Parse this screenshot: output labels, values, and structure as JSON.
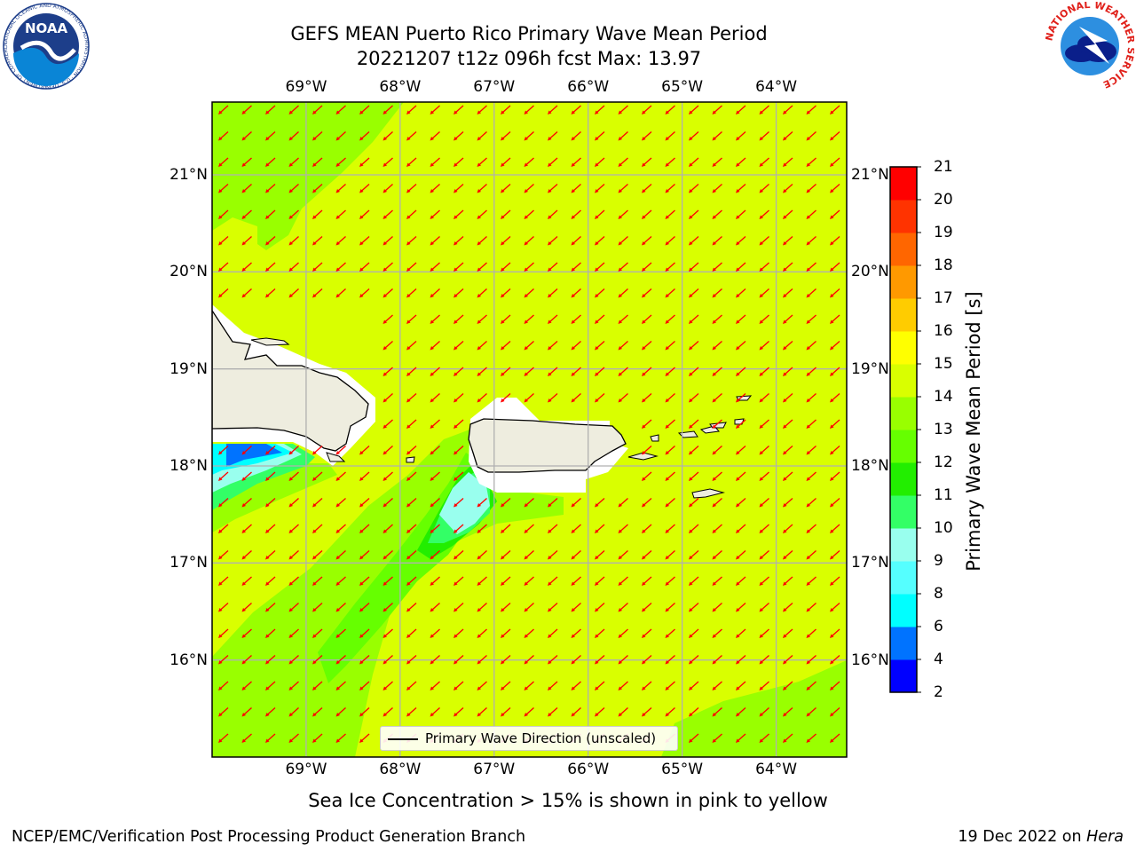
{
  "header": {
    "title_line1": "GEFS MEAN Puerto Rico Primary Wave Mean Period",
    "title_line2": "20221207 t12z 096h fcst   Max: 13.97"
  },
  "logos": {
    "noaa_text": "NOAA",
    "noaa_ring_text": "NATIONAL OCEANIC AND ATMOSPHERIC ADMINISTRATION · U.S. DEPARTMENT OF COMMERCE ·",
    "nws_ring_text": "NATIONAL WEATHER SERVICE"
  },
  "map": {
    "lon_labels": [
      "69°W",
      "68°W",
      "67°W",
      "66°W",
      "65°W",
      "64°W"
    ],
    "lat_labels": [
      "21°N",
      "20°N",
      "19°N",
      "18°N",
      "17°N",
      "16°N"
    ],
    "lon_values": [
      -69,
      -68,
      -67,
      -66,
      -65,
      -64
    ],
    "lat_values": [
      21,
      20,
      19,
      18,
      17,
      16
    ],
    "extent": {
      "lon_min": -70,
      "lon_max": -63.25,
      "lat_min": 15,
      "lat_max": 21.75
    },
    "arrow_color": "#ff0000",
    "land_color": "#eeeddf",
    "field_dominant_color": "#d9ff00"
  },
  "legend": {
    "label": "Primary Wave Direction (unscaled)"
  },
  "colorbar": {
    "title": "Primary Wave Mean Period [s]",
    "levels": [
      2,
      4,
      6,
      8,
      9,
      10,
      11,
      12,
      13,
      14,
      15,
      16,
      17,
      18,
      19,
      20,
      21
    ],
    "colors": [
      "#0000ff",
      "#0073ff",
      "#00ffff",
      "#55ffff",
      "#99ffee",
      "#33ff66",
      "#22ee00",
      "#66ff00",
      "#99ff00",
      "#d9ff00",
      "#ffff00",
      "#ffcc00",
      "#ff9900",
      "#ff6600",
      "#ff3300",
      "#ff0000"
    ]
  },
  "note": "Sea Ice Concentration > 15% is shown in pink to yellow",
  "footer": {
    "left": "NCEP/EMC/Verification Post Processing Product Generation Branch",
    "right_date": "19 Dec 2022 on",
    "right_host": "Hera"
  }
}
